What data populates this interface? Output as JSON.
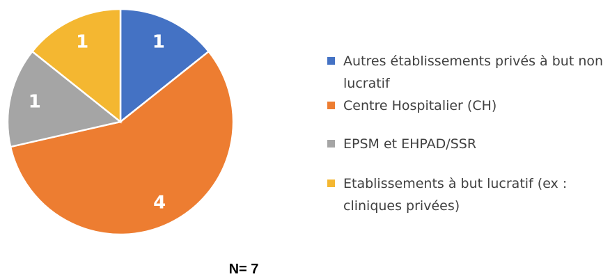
{
  "chart_data": {
    "type": "pie",
    "categories": [
      "Autres établissements privés à but non lucratif",
      "Centre Hospitalier (CH)",
      "EPSM et EHPAD/SSR",
      "Etablissements à but lucratif (ex : cliniques privées)"
    ],
    "values": [
      1,
      4,
      1,
      1
    ],
    "colors": [
      "#4472c4",
      "#ed7d31",
      "#a5a5a5",
      "#f4b731"
    ],
    "annotation": "N= 7",
    "legend": "right"
  }
}
